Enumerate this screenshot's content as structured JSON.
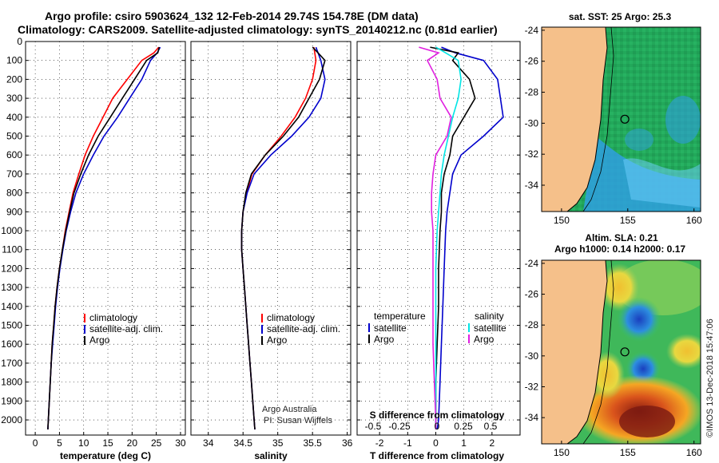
{
  "title": {
    "line1": "Argo profile: csiro 5903624_132 12-Feb-2014 29.74S 154.78E (DM data)",
    "line2": "Climatology: CARS2009. Satellite-adjusted climatology: synTS_20140212.nc (0.81d earlier)"
  },
  "colors": {
    "climatology": "#ff0000",
    "satellite": "#0000cc",
    "argo": "#000000",
    "sal_sat": "#00e5e5",
    "sal_argo": "#e020e0",
    "land": "#f5c08a"
  },
  "chart_data": [
    {
      "type": "line",
      "panel": "temperature",
      "xlabel": "temperature (deg C)",
      "ylabel": "",
      "xlim": [
        -2,
        31
      ],
      "ylim": [
        2080,
        0
      ],
      "xticks": [
        0,
        5,
        10,
        15,
        20,
        25,
        30
      ],
      "yticks": [
        0,
        100,
        200,
        300,
        400,
        500,
        600,
        700,
        800,
        900,
        1000,
        1100,
        1200,
        1300,
        1400,
        1500,
        1600,
        1700,
        1800,
        1900,
        2000
      ],
      "grid": true,
      "legend_position": "bottom-right",
      "series": [
        {
          "name": "climatology",
          "color_key": "climatology",
          "points": [
            [
              25.5,
              30
            ],
            [
              24.5,
              60
            ],
            [
              22,
              100
            ],
            [
              19,
              200
            ],
            [
              16,
              300
            ],
            [
              14,
              400
            ],
            [
              12,
              500
            ],
            [
              10.3,
              600
            ],
            [
              9,
              700
            ],
            [
              7.8,
              800
            ],
            [
              7,
              900
            ],
            [
              6.2,
              1000
            ],
            [
              5.6,
              1100
            ],
            [
              5,
              1200
            ],
            [
              4.5,
              1300
            ],
            [
              4.1,
              1400
            ],
            [
              3.8,
              1500
            ],
            [
              3.5,
              1600
            ],
            [
              3.3,
              1700
            ],
            [
              3.1,
              1800
            ],
            [
              2.9,
              1900
            ],
            [
              2.7,
              2000
            ],
            [
              2.6,
              2050
            ]
          ]
        },
        {
          "name": "satellite-adj. clim.",
          "color_key": "satellite",
          "points": [
            [
              25.8,
              30
            ],
            [
              25.2,
              60
            ],
            [
              23.8,
              100
            ],
            [
              22,
              200
            ],
            [
              19.5,
              300
            ],
            [
              17,
              400
            ],
            [
              14.2,
              500
            ],
            [
              12,
              600
            ],
            [
              10,
              700
            ],
            [
              8.4,
              800
            ],
            [
              7.3,
              900
            ],
            [
              6.4,
              1000
            ],
            [
              5.7,
              1100
            ],
            [
              5.1,
              1200
            ],
            [
              4.6,
              1300
            ],
            [
              4.2,
              1400
            ],
            [
              3.9,
              1500
            ],
            [
              3.6,
              1600
            ],
            [
              3.3,
              1700
            ],
            [
              3.1,
              1800
            ],
            [
              2.9,
              1900
            ],
            [
              2.7,
              2000
            ],
            [
              2.6,
              2050
            ]
          ]
        },
        {
          "name": "Argo",
          "color_key": "argo",
          "points": [
            [
              25.6,
              30
            ],
            [
              25.3,
              60
            ],
            [
              23,
              100
            ],
            [
              20.5,
              200
            ],
            [
              18,
              300
            ],
            [
              15.5,
              400
            ],
            [
              13,
              500
            ],
            [
              11,
              600
            ],
            [
              9.4,
              700
            ],
            [
              8,
              800
            ],
            [
              7.1,
              900
            ],
            [
              6.3,
              1000
            ],
            [
              5.6,
              1100
            ],
            [
              5,
              1200
            ],
            [
              4.5,
              1300
            ],
            [
              4.1,
              1400
            ],
            [
              3.8,
              1500
            ],
            [
              3.5,
              1600
            ],
            [
              3.3,
              1700
            ],
            [
              3.1,
              1800
            ],
            [
              2.9,
              1900
            ],
            [
              2.7,
              2000
            ],
            [
              2.6,
              2050
            ]
          ]
        }
      ]
    },
    {
      "type": "line",
      "panel": "salinity",
      "xlabel": "salinity",
      "ylabel": "",
      "xlim": [
        33.75,
        36.05
      ],
      "ylim": [
        2080,
        0
      ],
      "xticks": [
        34,
        34.5,
        35,
        35.5,
        36
      ],
      "grid": true,
      "legend_position": "bottom-right",
      "series": [
        {
          "name": "climatology",
          "color_key": "climatology",
          "points": [
            [
              35.52,
              30
            ],
            [
              35.55,
              100
            ],
            [
              35.5,
              200
            ],
            [
              35.4,
              300
            ],
            [
              35.25,
              400
            ],
            [
              35.05,
              500
            ],
            [
              34.82,
              600
            ],
            [
              34.63,
              700
            ],
            [
              34.55,
              800
            ],
            [
              34.5,
              900
            ],
            [
              34.48,
              1000
            ],
            [
              34.48,
              1100
            ],
            [
              34.5,
              1200
            ],
            [
              34.52,
              1300
            ],
            [
              34.54,
              1400
            ],
            [
              34.56,
              1500
            ],
            [
              34.58,
              1600
            ],
            [
              34.6,
              1700
            ],
            [
              34.62,
              1800
            ],
            [
              34.64,
              1900
            ],
            [
              34.66,
              2000
            ],
            [
              34.67,
              2050
            ]
          ]
        },
        {
          "name": "satellite-adj. clim.",
          "color_key": "satellite",
          "points": [
            [
              35.55,
              30
            ],
            [
              35.62,
              100
            ],
            [
              35.68,
              200
            ],
            [
              35.62,
              300
            ],
            [
              35.45,
              400
            ],
            [
              35.2,
              500
            ],
            [
              34.9,
              600
            ],
            [
              34.66,
              700
            ],
            [
              34.56,
              800
            ],
            [
              34.5,
              900
            ],
            [
              34.48,
              1000
            ],
            [
              34.48,
              1100
            ],
            [
              34.5,
              1200
            ],
            [
              34.52,
              1300
            ],
            [
              34.54,
              1400
            ],
            [
              34.56,
              1500
            ],
            [
              34.58,
              1600
            ],
            [
              34.6,
              1700
            ],
            [
              34.62,
              1800
            ],
            [
              34.64,
              1900
            ],
            [
              34.66,
              2000
            ],
            [
              34.67,
              2050
            ]
          ]
        },
        {
          "name": "Argo",
          "color_key": "argo",
          "points": [
            [
              35.5,
              30
            ],
            [
              35.58,
              60
            ],
            [
              35.68,
              100
            ],
            [
              35.6,
              200
            ],
            [
              35.45,
              300
            ],
            [
              35.3,
              400
            ],
            [
              35.08,
              500
            ],
            [
              34.82,
              600
            ],
            [
              34.62,
              700
            ],
            [
              34.54,
              800
            ],
            [
              34.5,
              900
            ],
            [
              34.48,
              1000
            ],
            [
              34.48,
              1100
            ],
            [
              34.5,
              1200
            ],
            [
              34.52,
              1300
            ],
            [
              34.54,
              1400
            ],
            [
              34.56,
              1500
            ],
            [
              34.58,
              1600
            ],
            [
              34.6,
              1700
            ],
            [
              34.62,
              1800
            ],
            [
              34.64,
              1900
            ],
            [
              34.66,
              2000
            ],
            [
              34.67,
              2050
            ]
          ]
        }
      ]
    },
    {
      "type": "line",
      "panel": "difference",
      "xlabel": "T difference from climatology",
      "xlabel2": "S difference from climatology",
      "ylabel": "",
      "xlim": [
        -2.8,
        3.0
      ],
      "ylim": [
        2080,
        0
      ],
      "xticks": [
        -2,
        -1,
        0,
        1,
        2
      ],
      "xticks_S": [
        "-0.5",
        "-0.25",
        "0",
        "0.25",
        "0.5"
      ],
      "grid": true,
      "legend_position": "bottom",
      "legend_left_title": "temperature",
      "legend_right_title": "salinity",
      "series": [
        {
          "name": "satellite",
          "group": "temperature",
          "color_key": "satellite",
          "points": [
            [
              0.2,
              30
            ],
            [
              0.7,
              60
            ],
            [
              1.7,
              100
            ],
            [
              2.2,
              200
            ],
            [
              2.3,
              300
            ],
            [
              2.4,
              400
            ],
            [
              1.7,
              500
            ],
            [
              0.9,
              600
            ],
            [
              0.6,
              700
            ],
            [
              0.5,
              800
            ],
            [
              0.4,
              900
            ],
            [
              0.35,
              1000
            ],
            [
              0.3,
              1200
            ],
            [
              0.25,
              1400
            ],
            [
              0.2,
              1600
            ],
            [
              0.15,
              1800
            ],
            [
              0.1,
              2000
            ],
            [
              0.05,
              2050
            ]
          ]
        },
        {
          "name": "Argo",
          "group": "temperature",
          "color_key": "argo",
          "points": [
            [
              -0.2,
              30
            ],
            [
              0.8,
              60
            ],
            [
              0.6,
              100
            ],
            [
              1.2,
              200
            ],
            [
              1.4,
              300
            ],
            [
              1.0,
              400
            ],
            [
              0.6,
              500
            ],
            [
              0.5,
              600
            ],
            [
              0.3,
              700
            ],
            [
              0.2,
              800
            ],
            [
              0.2,
              900
            ],
            [
              0.15,
              1000
            ],
            [
              0.1,
              1200
            ],
            [
              0.1,
              1400
            ],
            [
              0.05,
              1600
            ],
            [
              0.0,
              1800
            ],
            [
              0.0,
              2000
            ],
            [
              0.0,
              2050
            ]
          ]
        },
        {
          "name": "satellite",
          "group": "salinity",
          "color_key": "sal_sat",
          "points": [
            [
              0.0,
              30
            ],
            [
              0.35,
              60
            ],
            [
              0.8,
              100
            ],
            [
              0.9,
              200
            ],
            [
              0.8,
              300
            ],
            [
              0.6,
              400
            ],
            [
              0.45,
              500
            ],
            [
              0.3,
              600
            ],
            [
              0.2,
              700
            ],
            [
              0.15,
              800
            ],
            [
              0.1,
              900
            ],
            [
              0.05,
              1000
            ],
            [
              0.0,
              1200
            ],
            [
              0.0,
              1400
            ],
            [
              0.0,
              1600
            ],
            [
              0.0,
              1800
            ],
            [
              0.0,
              2000
            ],
            [
              0.0,
              2050
            ]
          ]
        },
        {
          "name": "Argo",
          "group": "salinity",
          "color_key": "sal_argo",
          "points": [
            [
              -0.6,
              30
            ],
            [
              0.1,
              60
            ],
            [
              -0.3,
              100
            ],
            [
              0.05,
              200
            ],
            [
              0.15,
              300
            ],
            [
              0.55,
              400
            ],
            [
              0.4,
              500
            ],
            [
              0.0,
              600
            ],
            [
              -0.1,
              700
            ],
            [
              -0.15,
              800
            ],
            [
              -0.15,
              900
            ],
            [
              -0.1,
              1000
            ],
            [
              -0.1,
              1200
            ],
            [
              -0.1,
              1400
            ],
            [
              -0.1,
              1600
            ],
            [
              -0.05,
              1800
            ],
            [
              0.0,
              2000
            ],
            [
              0.0,
              2050
            ]
          ]
        }
      ]
    },
    {
      "type": "heatmap",
      "panel": "sst_map",
      "title": "sat. SST: 25 Argo: 25.3",
      "xlim": [
        148.5,
        160.5
      ],
      "ylim": [
        -35.7,
        -23.8
      ],
      "xticks": [
        150,
        155,
        160
      ],
      "yticks": [
        -24,
        -26,
        -28,
        -30,
        -32,
        -34
      ],
      "profile_location": [
        154.78,
        -29.74
      ]
    },
    {
      "type": "heatmap",
      "panel": "sla_map",
      "title": "Altim. SLA: 0.21",
      "title2": "Argo h1000: 0.14 h2000: 0.17",
      "xlim": [
        148.5,
        160.5
      ],
      "ylim": [
        -35.7,
        -23.8
      ],
      "xticks": [
        150,
        155,
        160
      ],
      "yticks": [
        -24,
        -26,
        -28,
        -30,
        -32,
        -34
      ],
      "profile_location": [
        154.78,
        -29.74
      ]
    }
  ],
  "credits": {
    "line1": "Argo Australia",
    "line2": "PI: Susan Wijffels",
    "imos": "©IMOS 13-Dec-2018 15:47:06"
  }
}
